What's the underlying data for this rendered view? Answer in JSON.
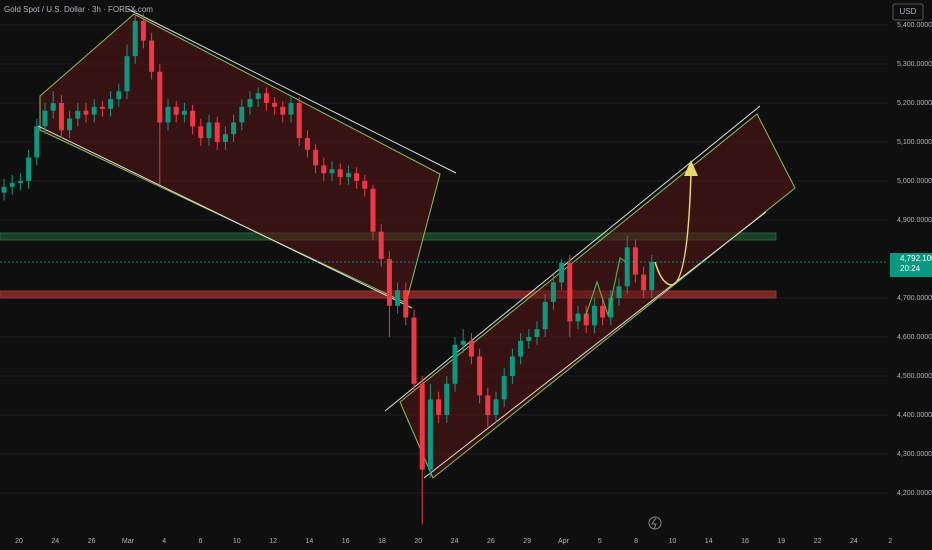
{
  "chart_data": {
    "type": "candlestick",
    "title": "Gold Spot / U.S. Dollar · 3h · FOREX.com",
    "currency": "USD",
    "price_label": "4,792.1000",
    "countdown": "20:24",
    "up_color": "#089981",
    "down_color": "#f23645",
    "ylim": [
      4100,
      5464
    ],
    "yticks": [
      {
        "value": 4200,
        "label": "4,200.0000"
      },
      {
        "value": 4300,
        "label": "4,300.0000"
      },
      {
        "value": 4400,
        "label": "4,400.0000"
      },
      {
        "value": 4500,
        "label": "4,500.0000"
      },
      {
        "value": 4600,
        "label": "4,600.0000"
      },
      {
        "value": 4700,
        "label": "4,700.0000"
      },
      {
        "value": 4900,
        "label": "4,900.0000"
      },
      {
        "value": 5000,
        "label": "5,000.0000"
      },
      {
        "value": 5100,
        "label": "5,100.0000"
      },
      {
        "value": 5200,
        "label": "5,200.0000"
      },
      {
        "value": 5300,
        "label": "5,300.0000"
      },
      {
        "value": 5400,
        "label": "5,400.0000"
      }
    ],
    "xtick_labels": [
      "20",
      "24",
      "26",
      "Mar",
      "4",
      "6",
      "10",
      "12",
      "14",
      "16",
      "18",
      "20",
      "24",
      "26",
      "29",
      "Apr",
      "5",
      "8",
      "10",
      "14",
      "16",
      "19",
      "22",
      "24",
      "2"
    ],
    "open": [
      4970,
      4985,
      4995,
      5000,
      5060,
      5140,
      5180,
      5200,
      5130,
      5160,
      5180,
      5170,
      5190,
      5185,
      5210,
      5230,
      5320,
      5410,
      5360,
      5280,
      5150,
      5190,
      5170,
      5180,
      5140,
      5110,
      5150,
      5100,
      5120,
      5150,
      5190,
      5210,
      5225,
      5200,
      5190,
      5170,
      5200,
      5110,
      5080,
      5040,
      5020,
      5030,
      5010,
      5020,
      5000,
      4980,
      4870,
      4800,
      4680,
      4720,
      4650,
      4480,
      4260,
      4440,
      4400,
      4480,
      4580,
      4590,
      4550,
      4450,
      4400,
      4440,
      4500,
      4550,
      4590,
      4600,
      4620,
      4690,
      4740,
      4790,
      4640,
      4660,
      4630,
      4680,
      4650,
      4700,
      4730,
      4830,
      4760,
      4720
    ],
    "high": [
      5005,
      5015,
      5020,
      5080,
      5160,
      5200,
      5230,
      5220,
      5180,
      5200,
      5200,
      5210,
      5205,
      5230,
      5250,
      5350,
      5440,
      5430,
      5380,
      5300,
      5210,
      5205,
      5200,
      5195,
      5160,
      5170,
      5165,
      5140,
      5170,
      5210,
      5230,
      5240,
      5240,
      5215,
      5205,
      5220,
      5215,
      5130,
      5095,
      5060,
      5050,
      5045,
      5040,
      5035,
      5015,
      4990,
      4890,
      4820,
      4740,
      4740,
      4670,
      4500,
      4480,
      4460,
      4500,
      4600,
      4620,
      4610,
      4570,
      4470,
      4460,
      4520,
      4570,
      4610,
      4620,
      4640,
      4710,
      4760,
      4800,
      4810,
      4680,
      4680,
      4700,
      4700,
      4720,
      4750,
      4860,
      4850,
      4780,
      4810
    ],
    "low": [
      4950,
      4965,
      4975,
      4980,
      5040,
      5120,
      5160,
      5110,
      5110,
      5140,
      5150,
      5150,
      5165,
      5165,
      5190,
      5210,
      5300,
      5340,
      5260,
      4990,
      5130,
      5150,
      5150,
      5120,
      5090,
      5090,
      5080,
      5080,
      5100,
      5130,
      5170,
      5190,
      5180,
      5170,
      5150,
      5150,
      5090,
      5060,
      5020,
      5000,
      5000,
      4990,
      4990,
      4980,
      4960,
      4850,
      4780,
      4600,
      4660,
      4630,
      4460,
      4120,
      4240,
      4380,
      4380,
      4460,
      4560,
      4530,
      4430,
      4370,
      4380,
      4420,
      4480,
      4530,
      4570,
      4580,
      4600,
      4670,
      4720,
      4600,
      4620,
      4610,
      4610,
      4630,
      4630,
      4680,
      4710,
      4740,
      4700,
      4700
    ],
    "close": [
      4985,
      4995,
      5000,
      5060,
      5140,
      5180,
      5200,
      5130,
      5160,
      5180,
      5170,
      5190,
      5185,
      5210,
      5230,
      5320,
      5410,
      5360,
      5280,
      5150,
      5190,
      5170,
      5180,
      5140,
      5110,
      5150,
      5100,
      5120,
      5150,
      5190,
      5210,
      5225,
      5200,
      5190,
      5170,
      5200,
      5110,
      5080,
      5040,
      5020,
      5030,
      5010,
      5020,
      5000,
      4980,
      4870,
      4800,
      4680,
      4720,
      4650,
      4480,
      4260,
      4440,
      4400,
      4480,
      4580,
      4590,
      4550,
      4450,
      4400,
      4440,
      4500,
      4550,
      4590,
      4600,
      4620,
      4690,
      4740,
      4790,
      4640,
      4660,
      4630,
      4680,
      4650,
      4700,
      4730,
      4830,
      4760,
      4720,
      4792.1
    ]
  }
}
